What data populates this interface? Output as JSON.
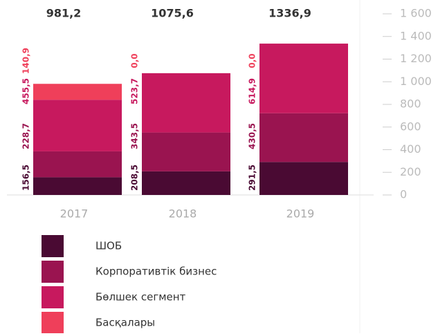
{
  "chart_data": {
    "type": "stacked_bar",
    "categories": [
      "2017",
      "2018",
      "2019"
    ],
    "totals": [
      {
        "value": 981.2,
        "label": "981,2"
      },
      {
        "value": 1075.6,
        "label": "1075,6"
      },
      {
        "value": 1336.9,
        "label": "1336,9"
      }
    ],
    "series": [
      {
        "name": "ШОБ",
        "color": "#4a0a33",
        "values": [
          156.5,
          208.5,
          291.5
        ],
        "value_labels": [
          "156,5",
          "208,5",
          "291,5"
        ]
      },
      {
        "name": "Корпоративтік бизнес",
        "color": "#9a1450",
        "values": [
          228.7,
          343.5,
          430.5
        ],
        "value_labels": [
          "228,7",
          "343,5",
          "430,5"
        ]
      },
      {
        "name": "Бөлшек сегмент",
        "color": "#c7195e",
        "values": [
          455.5,
          523.7,
          614.9
        ],
        "value_labels": [
          "455,5",
          "523,7",
          "614,9"
        ]
      },
      {
        "name": "Басқалары",
        "color": "#ef3f5a",
        "values": [
          140.9,
          0.0,
          0.0
        ],
        "value_labels": [
          "140,9",
          "0,0",
          "0,0"
        ]
      }
    ],
    "ylim": [
      0,
      1600
    ],
    "yticks": [
      0,
      200,
      400,
      600,
      800,
      {
        "value": 1000,
        "label": "1 000"
      },
      {
        "value": 1200,
        "label": "1 200"
      },
      {
        "value": 1400,
        "label": "1 400"
      },
      {
        "value": 1600,
        "label": "1 600"
      }
    ]
  }
}
